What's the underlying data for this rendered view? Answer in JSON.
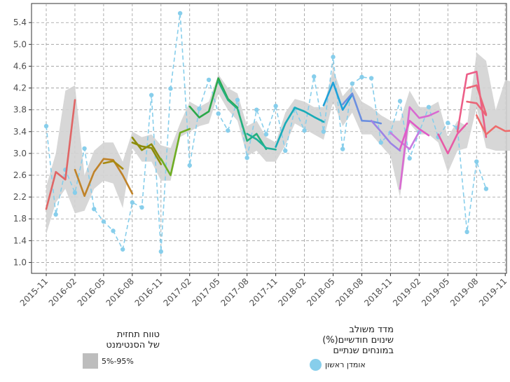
{
  "chart_data": {
    "type": "line",
    "y_ticks": [
      "1.0",
      "1.4",
      "1.8",
      "2.2",
      "2.6",
      "3.0",
      "3.4",
      "3.8",
      "4.2",
      "4.6",
      "5.0",
      "5.4"
    ],
    "ylim": [
      0.8,
      5.75
    ],
    "x_ticks": [
      "2015-11",
      "2016-02",
      "2016-05",
      "2016-08",
      "2016-11",
      "2017-02",
      "2017-05",
      "2017-08",
      "2017-11",
      "2018-02",
      "2018-05",
      "2018-08",
      "2018-11",
      "2019-02",
      "2019-05",
      "2019-08",
      "2019-11"
    ],
    "grid": true,
    "first_estimate": {
      "name": "אומדן ראשון",
      "color": "#87CEEB",
      "points": [
        [
          0,
          3.5
        ],
        [
          1,
          1.88
        ],
        [
          2,
          2.7
        ],
        [
          3,
          2.28
        ],
        [
          4,
          3.09
        ],
        [
          5,
          1.98
        ],
        [
          6,
          1.75
        ],
        [
          7,
          1.58
        ],
        [
          8,
          1.24
        ],
        [
          9,
          2.1
        ],
        [
          10,
          2.01
        ],
        [
          11,
          4.07
        ],
        [
          12,
          1.2
        ],
        [
          13,
          4.19
        ],
        [
          14,
          5.57
        ],
        [
          15,
          2.78
        ],
        [
          16,
          3.82
        ],
        [
          17,
          4.35
        ],
        [
          18,
          3.73
        ],
        [
          19,
          3.42
        ],
        [
          20,
          3.98
        ],
        [
          21,
          2.92
        ],
        [
          22,
          3.8
        ],
        [
          23,
          3.35
        ],
        [
          24,
          3.87
        ],
        [
          25,
          3.05
        ],
        [
          26,
          3.82
        ],
        [
          27,
          3.42
        ],
        [
          28,
          4.41
        ],
        [
          29,
          3.4
        ],
        [
          30,
          4.77
        ],
        [
          31,
          3.08
        ],
        [
          32,
          4.28
        ],
        [
          33,
          4.4
        ],
        [
          34,
          4.38
        ],
        [
          35,
          3.2
        ],
        [
          36,
          3.38
        ],
        [
          37,
          3.96
        ],
        [
          38,
          2.91
        ],
        [
          39,
          3.39
        ],
        [
          40,
          3.85
        ],
        [
          41,
          3.3
        ],
        [
          42,
          3.56
        ],
        [
          43,
          3.47
        ],
        [
          44,
          1.56
        ],
        [
          45,
          2.85
        ],
        [
          46,
          2.35
        ]
      ]
    },
    "vintages": [
      {
        "color": "#E06666",
        "points": [
          [
            0,
            1.98
          ],
          [
            1,
            2.66
          ],
          [
            2,
            2.52
          ],
          [
            3,
            3.98
          ]
        ]
      },
      {
        "color": "#C0832A",
        "points": [
          [
            3,
            2.7
          ],
          [
            4,
            2.22
          ],
          [
            5,
            2.66
          ],
          [
            6,
            2.9
          ],
          [
            7,
            2.88
          ],
          [
            8,
            2.6
          ],
          [
            9,
            2.26
          ]
        ]
      },
      {
        "color": "#A88A10",
        "points": [
          [
            6,
            2.82
          ],
          [
            7,
            2.86
          ],
          [
            8,
            2.72
          ]
        ]
      },
      {
        "color": "#8C8C0A",
        "points": [
          [
            9,
            3.29
          ],
          [
            10,
            3.06
          ],
          [
            11,
            3.17
          ],
          [
            12,
            2.88
          ]
        ]
      },
      {
        "color": "#8C8C0A",
        "points": [
          [
            9,
            3.2
          ],
          [
            10,
            3.13
          ],
          [
            11,
            3.1
          ],
          [
            12,
            2.8
          ]
        ]
      },
      {
        "color": "#6FAE23",
        "points": [
          [
            12,
            2.9
          ],
          [
            13,
            2.6
          ],
          [
            14,
            3.38
          ],
          [
            15,
            3.45
          ]
        ]
      },
      {
        "color": "#2BA84A",
        "points": [
          [
            15,
            3.86
          ],
          [
            16,
            3.66
          ],
          [
            17,
            3.77
          ],
          [
            18,
            4.38
          ],
          [
            19,
            4.0
          ],
          [
            20,
            3.84
          ]
        ]
      },
      {
        "color": "#24B07C",
        "points": [
          [
            18,
            4.32
          ],
          [
            19,
            3.98
          ],
          [
            20,
            3.82
          ],
          [
            21,
            3.23
          ],
          [
            22,
            3.36
          ],
          [
            23,
            3.08
          ]
        ]
      },
      {
        "color": "#1FB09A",
        "points": [
          [
            21,
            3.36
          ],
          [
            22,
            3.26
          ],
          [
            23,
            3.1
          ],
          [
            24,
            3.07
          ]
        ]
      },
      {
        "color": "#19ACB8",
        "points": [
          [
            24,
            3.12
          ],
          [
            25,
            3.55
          ],
          [
            26,
            3.84
          ],
          [
            27,
            3.77
          ],
          [
            28,
            3.67
          ],
          [
            29,
            3.58
          ]
        ]
      },
      {
        "color": "#1EA1D9",
        "points": [
          [
            29,
            3.88
          ],
          [
            30,
            4.3
          ],
          [
            31,
            3.8
          ],
          [
            32,
            4.08
          ]
        ]
      },
      {
        "color": "#6B8FE0",
        "points": [
          [
            31,
            3.9
          ],
          [
            32,
            4.1
          ],
          [
            33,
            3.6
          ],
          [
            34,
            3.59
          ],
          [
            35,
            3.55
          ]
        ]
      },
      {
        "color": "#9C83E6",
        "points": [
          [
            34,
            3.6
          ],
          [
            35,
            3.4
          ],
          [
            36,
            3.19
          ],
          [
            37,
            3.05
          ]
        ]
      },
      {
        "color": "#C77CE0",
        "points": [
          [
            36,
            3.38
          ],
          [
            37,
            3.22
          ],
          [
            38,
            3.08
          ],
          [
            39,
            3.4
          ]
        ]
      },
      {
        "color": "#D96AD1",
        "points": [
          [
            37,
            2.35
          ],
          [
            38,
            3.85
          ],
          [
            39,
            3.65
          ],
          [
            40,
            3.69
          ],
          [
            41,
            3.77
          ]
        ]
      },
      {
        "color": "#E15BC7",
        "points": [
          [
            37,
            3.08
          ],
          [
            38,
            3.6
          ],
          [
            39,
            3.45
          ],
          [
            40,
            3.33
          ]
        ]
      },
      {
        "color": "#E85AA6",
        "points": [
          [
            41,
            3.35
          ],
          [
            42,
            3.0
          ],
          [
            43,
            3.36
          ],
          [
            44,
            3.55
          ]
        ]
      },
      {
        "color": "#EC5E88",
        "points": [
          [
            43,
            3.4
          ],
          [
            44,
            4.45
          ],
          [
            45,
            4.5
          ],
          [
            46,
            3.3
          ]
        ]
      },
      {
        "color": "#EA6578",
        "points": [
          [
            44,
            3.95
          ],
          [
            45,
            3.92
          ],
          [
            46,
            3.7
          ]
        ]
      },
      {
        "color": "#EA6578",
        "points": [
          [
            44,
            4.2
          ],
          [
            45,
            4.25
          ],
          [
            46,
            3.72
          ]
        ]
      },
      {
        "color": "#EE6B6B",
        "points": [
          [
            45,
            3.7
          ],
          [
            46,
            3.35
          ],
          [
            47,
            3.5
          ],
          [
            48,
            3.41
          ],
          [
            49,
            3.42
          ]
        ]
      }
    ],
    "ribbon": {
      "color": "#D3D3D3",
      "band": [
        [
          0,
          1.52,
          2.4
        ],
        [
          1,
          2.1,
          3.0
        ],
        [
          2,
          2.35,
          4.15
        ],
        [
          3,
          1.9,
          4.25
        ],
        [
          4,
          1.95,
          2.6
        ],
        [
          5,
          2.35,
          3.05
        ],
        [
          6,
          2.5,
          3.2
        ],
        [
          7,
          2.45,
          3.2
        ],
        [
          8,
          2.0,
          2.85
        ],
        [
          9,
          3.1,
          3.4
        ],
        [
          10,
          2.85,
          3.3
        ],
        [
          11,
          2.85,
          3.35
        ],
        [
          12,
          2.5,
          3.15
        ],
        [
          13,
          2.5,
          3.1
        ],
        [
          14,
          3.3,
          3.55
        ],
        [
          15,
          3.4,
          3.95
        ],
        [
          16,
          3.5,
          3.85
        ],
        [
          17,
          3.55,
          3.95
        ],
        [
          18,
          4.1,
          4.45
        ],
        [
          19,
          3.8,
          4.2
        ],
        [
          20,
          3.6,
          4.1
        ],
        [
          21,
          2.95,
          3.5
        ],
        [
          22,
          3.05,
          3.6
        ],
        [
          23,
          2.85,
          3.3
        ],
        [
          24,
          2.85,
          3.2
        ],
        [
          25,
          3.15,
          3.75
        ],
        [
          26,
          3.55,
          4.0
        ],
        [
          27,
          3.45,
          3.95
        ],
        [
          28,
          3.35,
          3.85
        ],
        [
          29,
          3.25,
          3.85
        ],
        [
          30,
          3.95,
          4.55
        ],
        [
          31,
          3.5,
          4.05
        ],
        [
          32,
          3.75,
          4.25
        ],
        [
          33,
          3.35,
          3.95
        ],
        [
          34,
          3.35,
          3.85
        ],
        [
          35,
          3.15,
          3.7
        ],
        [
          36,
          2.95,
          3.6
        ],
        [
          37,
          2.2,
          3.6
        ],
        [
          38,
          3.55,
          4.15
        ],
        [
          39,
          3.35,
          3.85
        ],
        [
          40,
          3.35,
          3.85
        ],
        [
          41,
          3.2,
          3.95
        ],
        [
          42,
          2.65,
          3.3
        ],
        [
          43,
          3.05,
          3.6
        ],
        [
          44,
          3.1,
          3.5
        ],
        [
          45,
          3.85,
          4.85
        ],
        [
          46,
          3.1,
          4.7
        ],
        [
          47,
          3.05,
          3.8
        ],
        [
          48,
          3.05,
          4.35
        ],
        [
          49,
          3.05,
          4.3
        ]
      ]
    }
  },
  "legend_forecast": {
    "title": "טווח תחזית\nשל הסנטימנט",
    "item_label": "5%-95%",
    "swatch_color": "#BDBDBD"
  },
  "legend_index": {
    "title": "מדד משולב\nשינוים חודשיים(%)\nבמונחים שנתיים",
    "item_label": "אומדן ראשון",
    "dot_color": "#87CEEB"
  }
}
